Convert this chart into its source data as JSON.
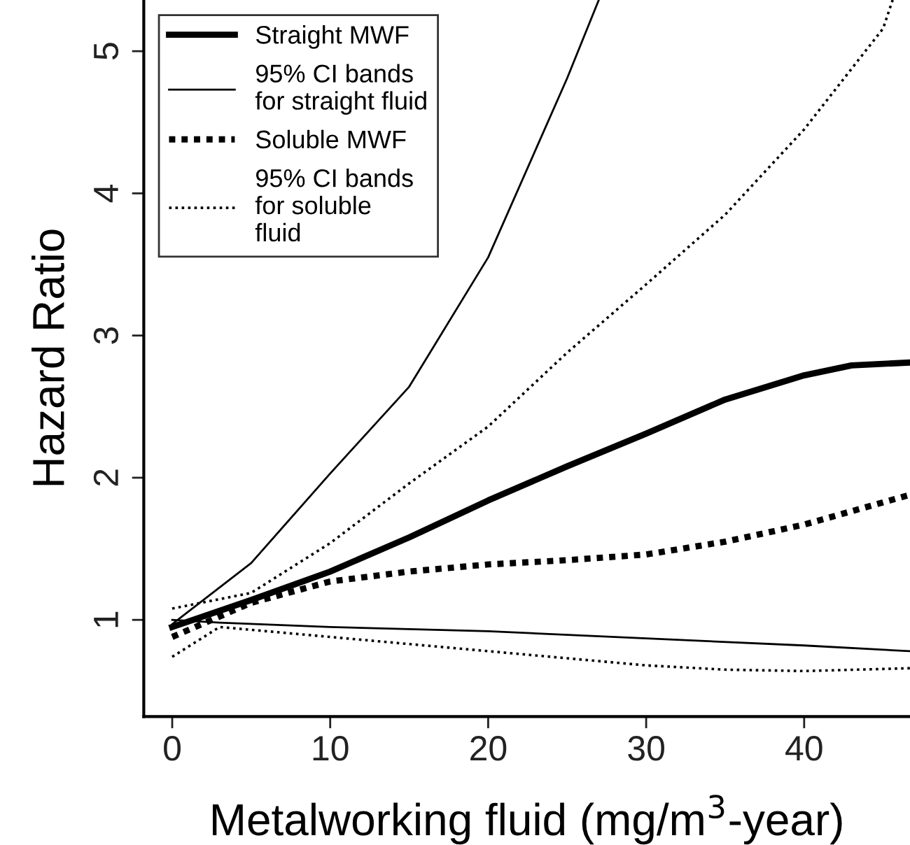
{
  "chart_data": {
    "type": "line",
    "xlabel": "Metalworking fluid (mg/m$^{3}$-year)",
    "ylabel": "Hazard Ratio",
    "xlim": [
      -1.8,
      46.7
    ],
    "ylim": [
      0.32,
      5.36
    ],
    "xticks": [
      0,
      10,
      20,
      30,
      40
    ],
    "yticks": [
      1,
      2,
      3,
      4,
      5
    ],
    "grid": false,
    "legend": "top left",
    "marker": "none",
    "series": [
      {
        "name": "Straight MWF",
        "color": "#000000",
        "line_style": "solid",
        "x": [
          0,
          5,
          10,
          15,
          20,
          25,
          30,
          35,
          40,
          43,
          46.7
        ],
        "values": [
          0.95,
          1.14,
          1.34,
          1.58,
          1.84,
          2.08,
          2.31,
          2.55,
          2.72,
          2.79,
          2.81
        ]
      },
      {
        "name": "95% CI bands\nfor straight fluid",
        "color": "#000000",
        "line_style": "solid",
        "x": [
          0,
          5,
          10,
          15,
          20,
          25,
          27
        ],
        "values": [
          0.97,
          1.4,
          2.03,
          2.64,
          3.55,
          4.81,
          5.36
        ]
      },
      {
        "color": "#000000",
        "line_style": "solid",
        "x": [
          0,
          3,
          10,
          20,
          30,
          40,
          46.7
        ],
        "values": [
          1.0,
          0.98,
          0.95,
          0.92,
          0.87,
          0.82,
          0.78
        ]
      },
      {
        "name": "Soluble MWF",
        "color": "#000000",
        "line_style": "dashed",
        "x": [
          0,
          5,
          10,
          15,
          20,
          25,
          30,
          35,
          40,
          46.7
        ],
        "values": [
          0.88,
          1.12,
          1.27,
          1.34,
          1.39,
          1.42,
          1.46,
          1.55,
          1.67,
          1.88
        ]
      },
      {
        "name": "95% CI bands\nfor soluble\nfluid",
        "color": "#000000",
        "line_style": "dotted",
        "x": [
          0,
          5,
          10,
          15,
          20,
          25,
          30,
          35,
          40,
          45,
          45.6
        ],
        "values": [
          1.08,
          1.19,
          1.54,
          1.96,
          2.36,
          2.88,
          3.36,
          3.85,
          4.45,
          5.16,
          5.36
        ]
      },
      {
        "color": "#000000",
        "line_style": "dotted",
        "x": [
          0,
          3,
          5,
          10,
          20,
          30,
          35,
          40,
          46.7
        ],
        "values": [
          0.74,
          0.95,
          0.93,
          0.88,
          0.78,
          0.68,
          0.65,
          0.64,
          0.66
        ]
      }
    ]
  }
}
